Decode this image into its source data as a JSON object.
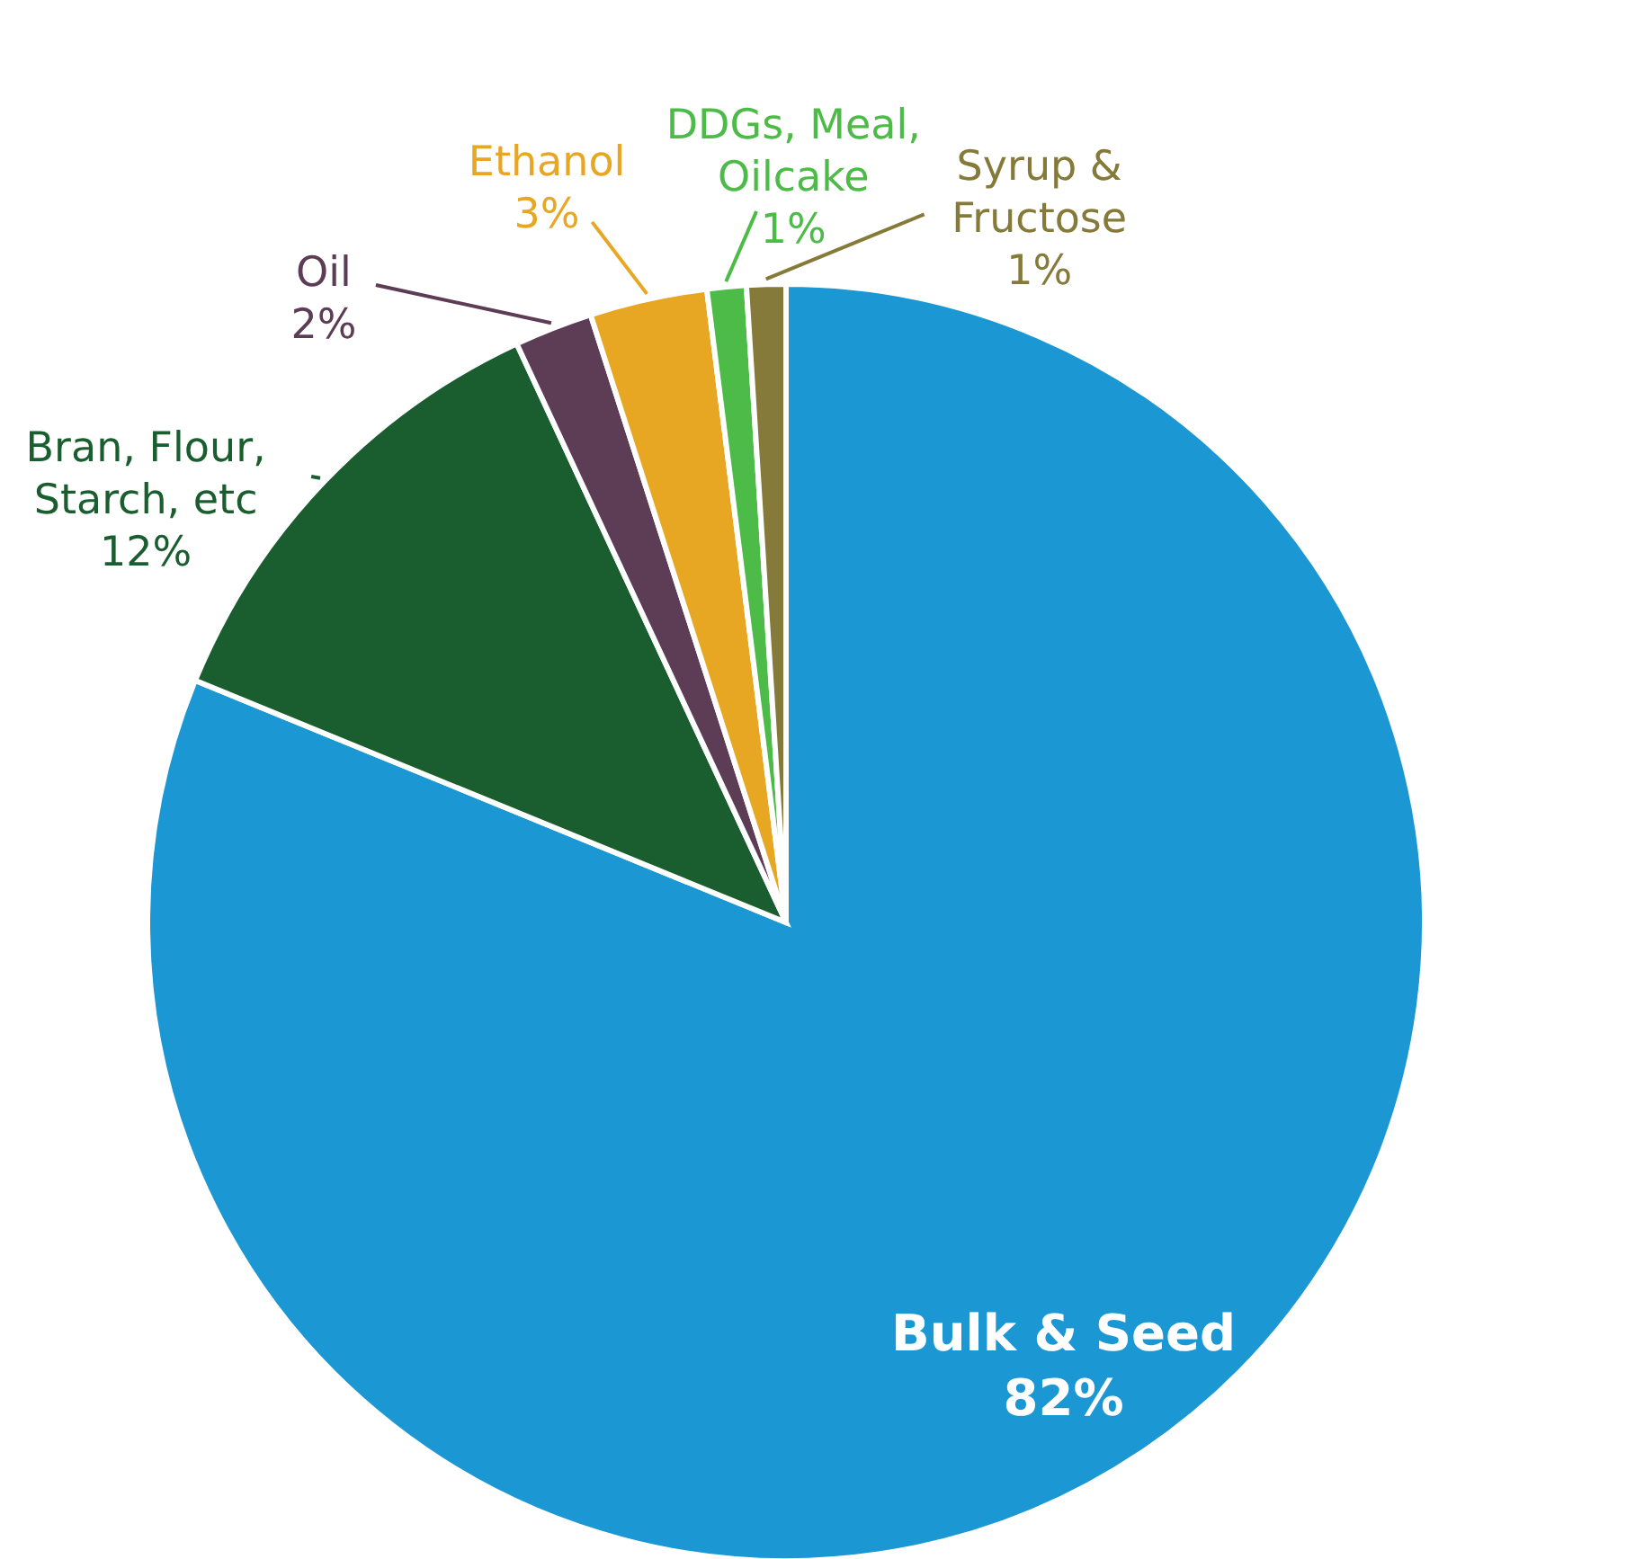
{
  "chart_data": {
    "type": "pie",
    "categories": [
      "Bulk & Seed",
      "Bran, Flour, Starch, etc",
      "Oil",
      "Ethanol",
      "DDGs, Meal, Oilcake",
      "Syrup & Fructose"
    ],
    "values": [
      82,
      12,
      2,
      3,
      1,
      1
    ],
    "colors": [
      "#1b98d4",
      "#1a5e2f",
      "#5c3d55",
      "#e8a723",
      "#4cbb47",
      "#857a3a"
    ],
    "value_labels": [
      "82%",
      "12%",
      "2%",
      "3%",
      "1%",
      "1%"
    ]
  }
}
